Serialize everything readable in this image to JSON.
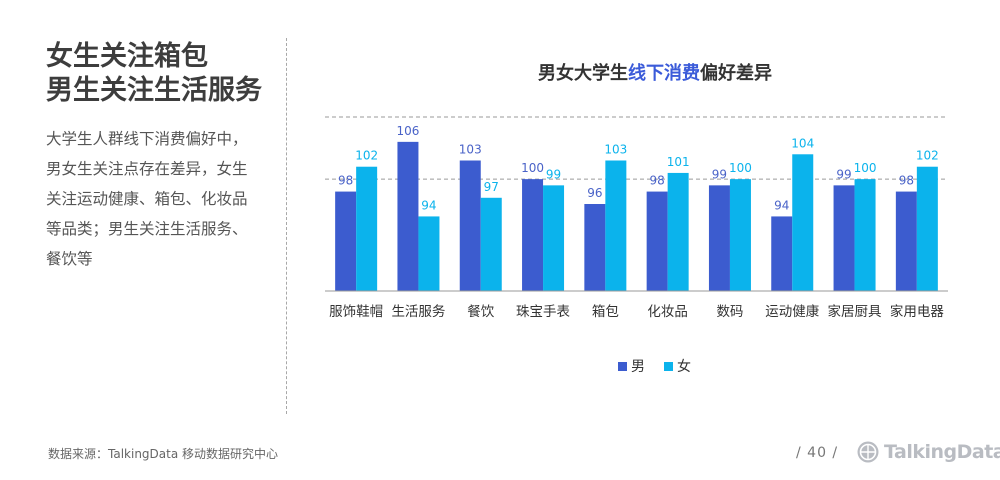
{
  "headline": {
    "line1": "女生关注箱包",
    "line2": "男生关注生活服务"
  },
  "description": "大学生人群线下消费偏好中，男女生关注点存在差异，女生关注运动健康、箱包、化妆品等品类；男生关注生活服务、餐饮等",
  "chart_title": {
    "prefix": "男女大学生",
    "highlight": "线下消费",
    "suffix": "偏好差异"
  },
  "colors": {
    "male": "#3c5ccf",
    "female": "#0bb3ec",
    "title_highlight": "#3b5bd9",
    "label": "#4a63c8"
  },
  "chart_data": {
    "type": "bar",
    "categories": [
      "服饰鞋帽",
      "生活服务",
      "餐饮",
      "珠宝手表",
      "箱包",
      "化妆品",
      "数码",
      "运动健康",
      "家居厨具",
      "家用电器"
    ],
    "series": [
      {
        "name": "男",
        "values": [
          98,
          106,
          103,
          100,
          96,
          98,
          99,
          94,
          99,
          98
        ]
      },
      {
        "name": "女",
        "values": [
          102,
          94,
          97,
          99,
          103,
          101,
          100,
          104,
          100,
          102
        ]
      }
    ],
    "reference_lines": [
      100,
      110
    ],
    "ylim": [
      82,
      110
    ],
    "legend": "bottom-center",
    "grid": false
  },
  "footer": {
    "source": "数据来源：TalkingData 移动数据研究中心",
    "page": "/ 40 /",
    "brand": "TalkingData"
  }
}
